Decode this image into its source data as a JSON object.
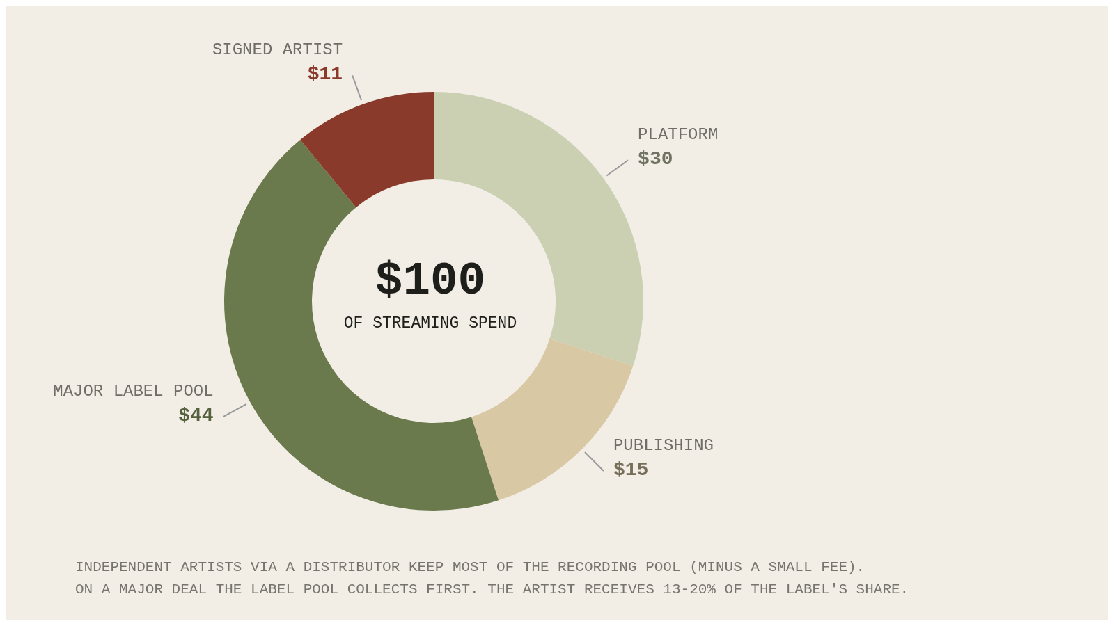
{
  "chart_data": {
    "type": "donut",
    "categories": [
      "PLATFORM",
      "PUBLISHING",
      "MAJOR LABEL POOL",
      "SIGNED ARTIST"
    ],
    "values": [
      30,
      15,
      44,
      11
    ],
    "colors": [
      "#cbd0b3",
      "#d9c8a4",
      "#6b7a4d",
      "#8a3a2a"
    ],
    "value_labels": [
      "$30",
      "$15",
      "$44",
      "$11"
    ],
    "annotations": [
      "$100",
      "OF STREAMING SPEND",
      "INDEPENDENT ARTISTS VIA A DISTRIBUTOR KEEP MOST OF THE RECORDING POOL (MINUS A SMALL FEE).",
      "ON A MAJOR DEAL THE LABEL POOL COLLECTS FIRST. THE ARTIST RECEIVES 13-20% OF THE LABEL'S SHARE."
    ]
  }
}
